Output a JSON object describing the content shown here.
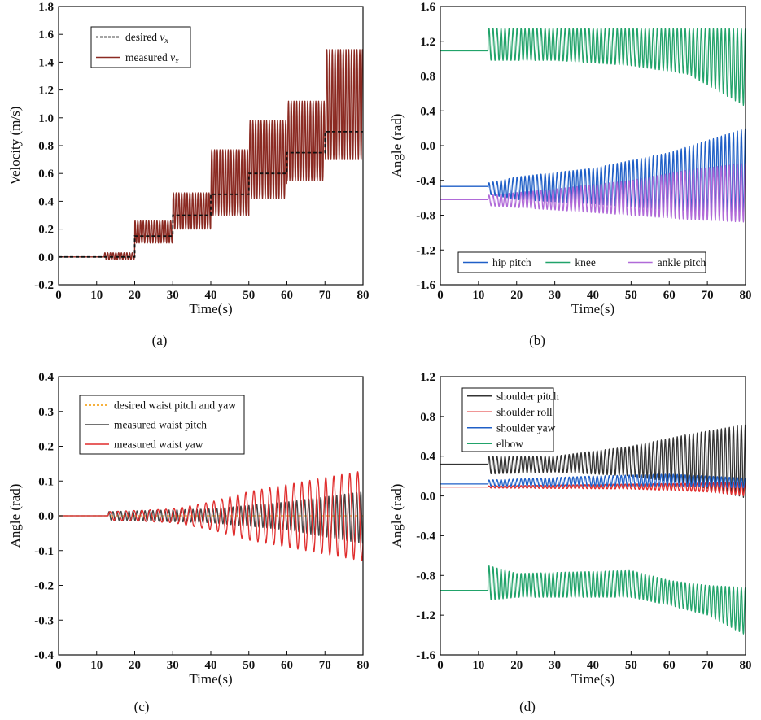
{
  "chart_data": [
    {
      "id": "a",
      "type": "line",
      "panel_label": "(a)",
      "xlabel": "Time(s)",
      "ylabel": "Velocity (m/s)",
      "xlim": [
        0,
        80
      ],
      "ylim": [
        -0.2,
        1.8
      ],
      "xticks": [
        0,
        10,
        20,
        30,
        40,
        50,
        60,
        70,
        80
      ],
      "yticks": [
        -0.2,
        0.0,
        0.2,
        0.4,
        0.6,
        0.8,
        1.0,
        1.2,
        1.4,
        1.6,
        1.8
      ],
      "ytick_labels": [
        "-0.2",
        "0.0",
        "0.2",
        "0.4",
        "0.6",
        "0.8",
        "1.0",
        "1.2",
        "1.4",
        "1.6",
        "1.8"
      ],
      "legend_position": "top-left",
      "series": [
        {
          "name": "desired",
          "legend_label": "desired  ",
          "legend_italic": "v",
          "legend_sub": "x",
          "color": "#111111",
          "dashed": true,
          "kind": "step",
          "steps": [
            [
              0,
              0.0
            ],
            [
              20,
              0.15
            ],
            [
              30,
              0.3
            ],
            [
              40,
              0.45
            ],
            [
              50,
              0.6
            ],
            [
              60,
              0.75
            ],
            [
              70,
              0.9
            ],
            [
              80,
              0.9
            ]
          ]
        },
        {
          "name": "measured",
          "legend_label": "measured ",
          "legend_italic": "v",
          "legend_sub": "x",
          "color": "#8b2a22",
          "dashed": false,
          "kind": "oscillation",
          "t_start": 12,
          "period": 0.72,
          "segments": [
            {
              "t0": 10,
              "t1": 20,
              "base": 0.0,
              "lo": -0.02,
              "hi": 0.03
            },
            {
              "t0": 20,
              "t1": 30,
              "base": 0.15,
              "lo": 0.1,
              "hi": 0.26
            },
            {
              "t0": 30,
              "t1": 40,
              "base": 0.3,
              "lo": 0.2,
              "hi": 0.46
            },
            {
              "t0": 40,
              "t1": 50,
              "base": 0.45,
              "lo": 0.3,
              "hi": 0.77
            },
            {
              "t0": 50,
              "t1": 60,
              "base": 0.6,
              "lo": 0.42,
              "hi": 0.98
            },
            {
              "t0": 60,
              "t1": 70,
              "base": 0.75,
              "lo": 0.55,
              "hi": 1.12
            },
            {
              "t0": 70,
              "t1": 80,
              "base": 0.9,
              "lo": 0.7,
              "hi": 1.49
            }
          ]
        }
      ]
    },
    {
      "id": "b",
      "type": "line",
      "panel_label": "(b)",
      "xlabel": "Time(s)",
      "ylabel": "Angle (rad)",
      "xlim": [
        0,
        80
      ],
      "ylim": [
        -1.6,
        1.6
      ],
      "xticks": [
        0,
        10,
        20,
        30,
        40,
        50,
        60,
        70,
        80
      ],
      "yticks": [
        -1.6,
        -1.2,
        -0.8,
        -0.4,
        0.0,
        0.4,
        0.8,
        1.2,
        1.6
      ],
      "ytick_labels": [
        "-1.6",
        "-1.2",
        "-0.8",
        "-0.4",
        "0.0",
        "0.4",
        "0.8",
        "1.2",
        "1.6"
      ],
      "legend_position": "bottom (horizontal)",
      "series": [
        {
          "name": "hip pitch",
          "legend_label": "hip pitch",
          "color": "#1f5fc7",
          "kind": "envelope",
          "t_start": 12.5,
          "period": 1.05,
          "rest": -0.47,
          "env": [
            [
              12.5,
              -0.56,
              -0.43
            ],
            [
              20,
              -0.62,
              -0.36
            ],
            [
              40,
              -0.67,
              -0.26
            ],
            [
              60,
              -0.74,
              -0.08
            ],
            [
              80,
              -0.78,
              0.2
            ]
          ]
        },
        {
          "name": "knee",
          "legend_label": "knee",
          "color": "#21a36a",
          "kind": "envelope",
          "t_start": 12.5,
          "period": 1.05,
          "rest": 1.09,
          "env": [
            [
              12.5,
              0.98,
              1.35
            ],
            [
              30,
              0.98,
              1.35
            ],
            [
              50,
              0.92,
              1.35
            ],
            [
              65,
              0.82,
              1.35
            ],
            [
              80,
              0.45,
              1.35
            ]
          ]
        },
        {
          "name": "ankle pitch",
          "legend_label": "ankle pitch",
          "color": "#b06ad8",
          "kind": "envelope",
          "t_start": 12.5,
          "period": 1.05,
          "rest": -0.62,
          "env": [
            [
              12.5,
              -0.69,
              -0.57
            ],
            [
              30,
              -0.74,
              -0.5
            ],
            [
              50,
              -0.8,
              -0.4
            ],
            [
              65,
              -0.85,
              -0.28
            ],
            [
              80,
              -0.88,
              -0.2
            ]
          ]
        }
      ]
    },
    {
      "id": "c",
      "type": "line",
      "panel_label": "(c)",
      "xlabel": "Time(s)",
      "ylabel": "Angle (rad)",
      "xlim": [
        0,
        80
      ],
      "ylim": [
        -0.4,
        0.4
      ],
      "xticks": [
        0,
        10,
        20,
        30,
        40,
        50,
        60,
        70,
        80
      ],
      "yticks": [
        -0.4,
        -0.3,
        -0.2,
        -0.1,
        0.0,
        0.1,
        0.2,
        0.3,
        0.4
      ],
      "ytick_labels": [
        "-0.4",
        "-0.3",
        "-0.2",
        "-0.1",
        "0.0",
        "0.1",
        "0.2",
        "0.3",
        "0.4"
      ],
      "legend_position": "top-left",
      "series": [
        {
          "name": "desired waist pitch and yaw",
          "legend_label": "desired waist pitch and yaw",
          "color": "#f5a623",
          "dashed": true,
          "kind": "constant",
          "value": 0.0
        },
        {
          "name": "measured waist pitch",
          "legend_label": "measured waist pitch",
          "color": "#444444",
          "kind": "envelope",
          "t_start": 13,
          "period": 1.05,
          "rest": 0.0,
          "env": [
            [
              13,
              -0.012,
              0.012
            ],
            [
              40,
              -0.02,
              0.02
            ],
            [
              60,
              -0.04,
              0.04
            ],
            [
              80,
              -0.08,
              0.07
            ]
          ]
        },
        {
          "name": "measured waist yaw",
          "legend_label": "measured waist yaw",
          "color": "#e02c2c",
          "kind": "envelope",
          "t_start": 13,
          "period": 2.1,
          "rest": 0.0,
          "env": [
            [
              13,
              -0.012,
              0.012
            ],
            [
              30,
              -0.02,
              0.02
            ],
            [
              40,
              -0.04,
              0.04
            ],
            [
              50,
              -0.07,
              0.07
            ],
            [
              60,
              -0.09,
              0.09
            ],
            [
              70,
              -0.11,
              0.11
            ],
            [
              80,
              -0.13,
              0.13
            ]
          ]
        }
      ]
    },
    {
      "id": "d",
      "type": "line",
      "panel_label": "(d)",
      "xlabel": "Time(s)",
      "ylabel": "Angle (rad)",
      "xlim": [
        0,
        80
      ],
      "ylim": [
        -1.6,
        1.2
      ],
      "xticks": [
        0,
        10,
        20,
        30,
        40,
        50,
        60,
        70,
        80
      ],
      "yticks": [
        -1.6,
        -1.2,
        -0.8,
        -0.4,
        0.0,
        0.4,
        0.8,
        1.2
      ],
      "ytick_labels": [
        "-1.6",
        "-1.2",
        "-0.8",
        "-0.4",
        "0.0",
        "0.4",
        "0.8",
        "1.2"
      ],
      "legend_position": "top-left",
      "series": [
        {
          "name": "shoulder pitch",
          "legend_label": "shoulder pitch",
          "color": "#333333",
          "kind": "envelope",
          "t_start": 12.5,
          "period": 1.05,
          "rest": 0.32,
          "env": [
            [
              12.5,
              0.22,
              0.4
            ],
            [
              30,
              0.24,
              0.4
            ],
            [
              50,
              0.2,
              0.5
            ],
            [
              65,
              0.12,
              0.62
            ],
            [
              80,
              -0.02,
              0.72
            ]
          ]
        },
        {
          "name": "shoulder roll",
          "legend_label": "shoulder roll",
          "color": "#e02c2c",
          "kind": "envelope",
          "t_start": 12.5,
          "period": 1.05,
          "rest": 0.09,
          "env": [
            [
              12.5,
              0.08,
              0.1
            ],
            [
              50,
              0.07,
              0.12
            ],
            [
              70,
              0.04,
              0.13
            ],
            [
              80,
              0.0,
              0.14
            ]
          ]
        },
        {
          "name": "shoulder yaw",
          "legend_label": "shoulder yaw",
          "color": "#1f5fc7",
          "kind": "envelope",
          "t_start": 12.5,
          "period": 1.05,
          "rest": 0.12,
          "env": [
            [
              12.5,
              0.1,
              0.16
            ],
            [
              40,
              0.1,
              0.2
            ],
            [
              60,
              0.1,
              0.22
            ],
            [
              80,
              0.08,
              0.18
            ]
          ]
        },
        {
          "name": "elbow",
          "legend_label": "elbow",
          "color": "#21a36a",
          "kind": "envelope",
          "t_start": 12.5,
          "period": 1.05,
          "rest": -0.95,
          "env": [
            [
              12.5,
              -1.05,
              -0.7
            ],
            [
              20,
              -1.02,
              -0.78
            ],
            [
              50,
              -1.02,
              -0.75
            ],
            [
              60,
              -1.1,
              -0.85
            ],
            [
              70,
              -1.2,
              -0.9
            ],
            [
              80,
              -1.4,
              -0.92
            ]
          ]
        }
      ]
    }
  ]
}
